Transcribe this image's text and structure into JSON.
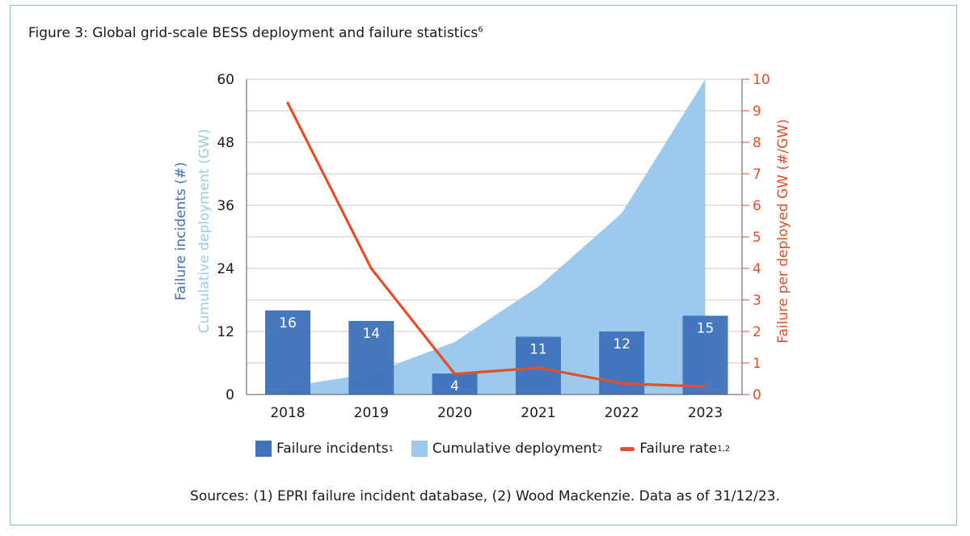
{
  "figure": {
    "title": "Figure 3: Global grid-scale BESS deployment and failure statistics",
    "title_sup": "6"
  },
  "legend": {
    "incidents_label": "Failure incidents",
    "incidents_sup": "1",
    "deployment_label": "Cumulative deployment",
    "deployment_sup": "2",
    "rate_label": "Failure rate",
    "rate_sup": "1,2"
  },
  "source_note": "Sources: (1) EPRI failure incident database, (2) Wood Mackenzie. Data as of 31/12/23.",
  "chart_data": {
    "type": "bar",
    "categories": [
      "2018",
      "2019",
      "2020",
      "2021",
      "2022",
      "2023"
    ],
    "series": [
      {
        "name": "Failure incidents",
        "type": "bar",
        "axis": "left",
        "values": [
          16,
          14,
          4,
          11,
          12,
          15
        ],
        "color": "#3f73bb"
      },
      {
        "name": "Cumulative deployment",
        "type": "area",
        "axis": "left",
        "values": [
          1.5,
          4,
          10,
          20.5,
          34.5,
          61.5
        ],
        "color": "#9ccaed"
      },
      {
        "name": "Failure rate",
        "type": "line",
        "axis": "right",
        "values": [
          9.25,
          4.0,
          0.65,
          0.85,
          0.35,
          0.25
        ],
        "color": "#e0502a"
      }
    ],
    "ylabel_left": [
      "Failure incidents (#)",
      "Cumulative deployment (GW)"
    ],
    "ylabel_right": "Failure per deployed GW (#/GW)",
    "ylim_left": [
      0,
      60
    ],
    "yticks_left": [
      0,
      12,
      24,
      36,
      48,
      60
    ],
    "ylim_right": [
      0,
      10
    ],
    "yticks_right": [
      0,
      1,
      2,
      3,
      4,
      5,
      6,
      7,
      8,
      9,
      10
    ],
    "colors": {
      "bar": "#3f73bb",
      "area": "#9ccaed",
      "line": "#e0502a",
      "grid": "#c8c8c8",
      "left_label_1": "#3f73bb",
      "left_label_2": "#9ccaed"
    },
    "grid": true
  }
}
